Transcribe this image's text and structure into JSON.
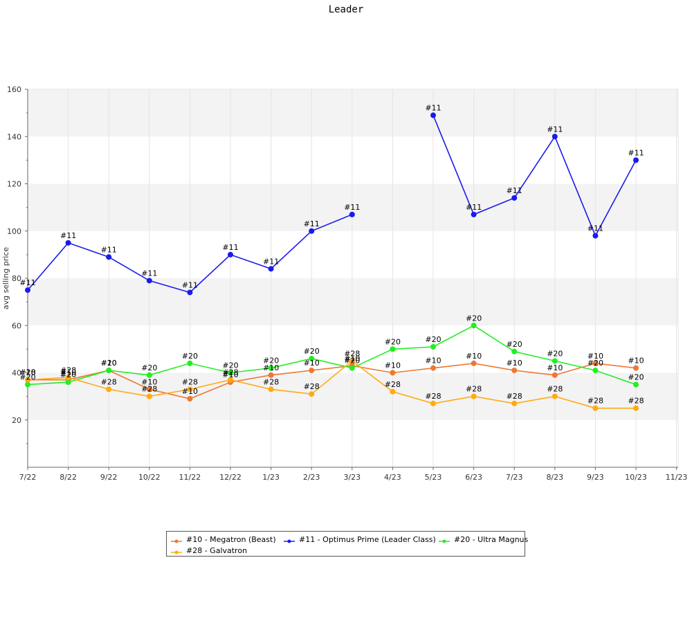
{
  "chart_data": {
    "type": "line",
    "title": "Leader",
    "ylabel": "avg selling price",
    "xlabel": "",
    "categories": [
      "7/22",
      "8/22",
      "9/22",
      "10/22",
      "11/22",
      "12/22",
      "1/23",
      "2/23",
      "3/23",
      "4/23",
      "5/23",
      "6/23",
      "7/23",
      "8/23",
      "9/23",
      "10/23",
      "11/23"
    ],
    "ylim": [
      0,
      160
    ],
    "yticks": [
      20,
      40,
      60,
      80,
      100,
      120,
      140,
      160
    ],
    "grid": true,
    "legend_position": "bottom",
    "series": [
      {
        "name": "#10 - Megatron (Beast)",
        "point_label": "#10",
        "color": "#ee7733",
        "values": [
          37,
          37,
          41,
          33,
          29,
          36,
          39,
          41,
          43,
          40,
          42,
          44,
          41,
          39,
          44,
          42,
          null
        ]
      },
      {
        "name": "#11 - Optimus Prime (Leader Class)",
        "point_label": "#11",
        "color": "#1a1aee",
        "values": [
          75,
          95,
          89,
          79,
          74,
          90,
          84,
          100,
          107,
          null,
          149,
          107,
          114,
          140,
          98,
          130,
          null
        ]
      },
      {
        "name": "#20 - Ultra Magnus",
        "point_label": "#20",
        "color": "#22ee22",
        "values": [
          35,
          36,
          41,
          39,
          44,
          40,
          42,
          46,
          42,
          50,
          51,
          60,
          49,
          45,
          41,
          35,
          null
        ]
      },
      {
        "name": "#28 - Galvatron",
        "point_label": "#28",
        "color": "#ffaa11",
        "values": [
          37,
          38,
          33,
          30,
          33,
          37,
          33,
          31,
          45,
          32,
          27,
          30,
          27,
          30,
          25,
          25,
          null
        ]
      }
    ]
  }
}
